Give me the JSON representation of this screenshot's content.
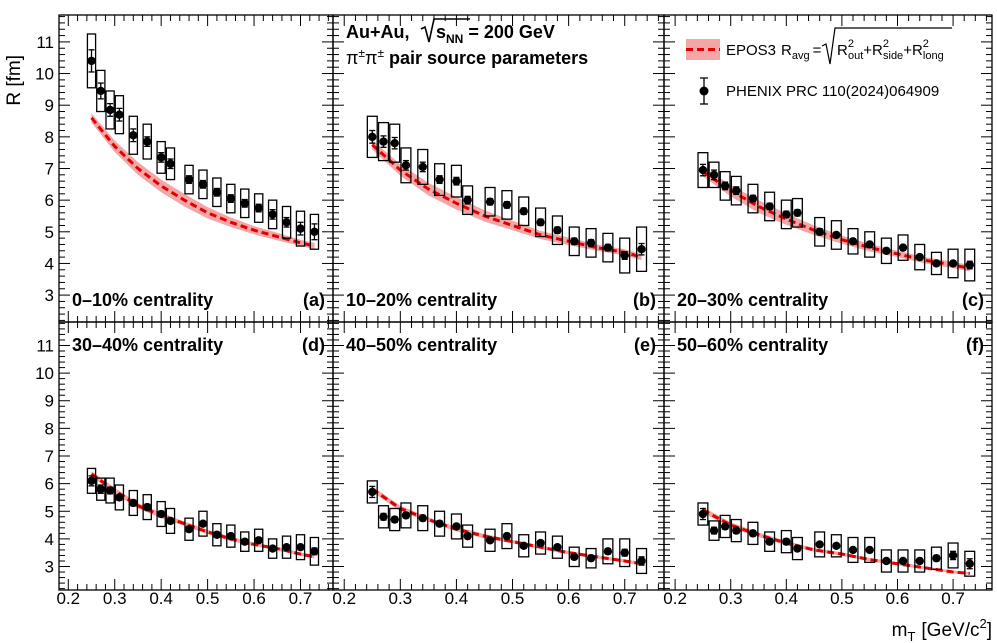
{
  "figure": {
    "y_axis_title": "R [fm]",
    "x_axis_title": "m",
    "x_axis_title_sub": "T",
    "x_axis_title_unit": "[GeV/c",
    "x_axis_title_unit_sup": "2",
    "x_axis_title_unit_end": "]"
  },
  "header": {
    "system": "Au+Au,",
    "sqrt_symbol": "√",
    "s": "s",
    "s_sub": "NN",
    "energy": "= 200 GeV",
    "pi1": "π",
    "pi1_sup": "±",
    "pi2": "π",
    "pi2_sup": "±",
    "line2_rest": "pair source parameters"
  },
  "legend": {
    "epos_label": "EPOS3",
    "r_symbol": "R",
    "r_sub": "avg",
    "equals": "=",
    "term1": "R",
    "term1_sup": "2",
    "term1_sub": "out",
    "plus1": "+",
    "term2": "R",
    "term2_sup": "2",
    "term2_sub": "side",
    "plus2": "+",
    "term3": "R",
    "term3_sup": "2",
    "term3_sub": "long",
    "phenix_label": "PHENIX PRC 110(2024)064909"
  },
  "colors": {
    "band": "#f4a6a6",
    "dash": "#e00000",
    "marker": "#000000"
  },
  "chart_data": {
    "type": "scatter",
    "xlim": [
      0.18,
      0.77
    ],
    "ylim": [
      2.15,
      11.85
    ],
    "x_ticks": [
      "0.2",
      "0.3",
      "0.4",
      "0.5",
      "0.6",
      "0.7"
    ],
    "y_ticks": [
      "3",
      "4",
      "5",
      "6",
      "7",
      "8",
      "9",
      "10",
      "11"
    ],
    "x": [
      0.25,
      0.27,
      0.29,
      0.31,
      0.34,
      0.37,
      0.4,
      0.42,
      0.46,
      0.49,
      0.52,
      0.55,
      0.58,
      0.61,
      0.64,
      0.67,
      0.7,
      0.73
    ],
    "panels": [
      {
        "label": "0–10% centrality",
        "letter": "(a)",
        "y": [
          10.4,
          9.45,
          8.85,
          8.7,
          8.05,
          7.85,
          7.35,
          7.15,
          6.65,
          6.5,
          6.25,
          6.05,
          5.9,
          5.75,
          5.55,
          5.3,
          5.1,
          5.0
        ],
        "stat_err": [
          0.35,
          0.25,
          0.2,
          0.2,
          0.2,
          0.15,
          0.15,
          0.15,
          0.12,
          0.12,
          0.12,
          0.12,
          0.12,
          0.12,
          0.15,
          0.15,
          0.2,
          0.25
        ],
        "sys_err": [
          0.85,
          0.65,
          0.6,
          0.6,
          0.6,
          0.55,
          0.5,
          0.5,
          0.45,
          0.45,
          0.45,
          0.45,
          0.45,
          0.45,
          0.45,
          0.5,
          0.55,
          0.55
        ],
        "epos_x": [
          0.25,
          0.3,
          0.35,
          0.4,
          0.45,
          0.5,
          0.55,
          0.6,
          0.65,
          0.7,
          0.73
        ],
        "epos_y": [
          8.6,
          7.7,
          7.0,
          6.45,
          6.0,
          5.6,
          5.3,
          5.05,
          4.85,
          4.65,
          4.55
        ],
        "epos_w": [
          0.15,
          0.18,
          0.2,
          0.2,
          0.2,
          0.18,
          0.15,
          0.13,
          0.12,
          0.1,
          0.1
        ]
      },
      {
        "label": "10–20% centrality",
        "letter": "(b)",
        "y": [
          8.0,
          7.85,
          7.8,
          7.1,
          7.05,
          6.65,
          6.6,
          6.0,
          5.95,
          5.85,
          5.65,
          5.3,
          5.05,
          4.7,
          4.65,
          4.5,
          4.25,
          4.45
        ],
        "stat_err": [
          0.2,
          0.18,
          0.18,
          0.15,
          0.15,
          0.12,
          0.12,
          0.12,
          0.1,
          0.1,
          0.1,
          0.1,
          0.1,
          0.1,
          0.1,
          0.1,
          0.12,
          0.18
        ],
        "sys_err": [
          0.65,
          0.6,
          0.6,
          0.55,
          0.55,
          0.5,
          0.5,
          0.45,
          0.45,
          0.45,
          0.45,
          0.45,
          0.45,
          0.45,
          0.45,
          0.45,
          0.55,
          0.7
        ],
        "epos_x": [
          0.25,
          0.3,
          0.35,
          0.4,
          0.45,
          0.5,
          0.55,
          0.6,
          0.65,
          0.7,
          0.73
        ],
        "epos_y": [
          7.75,
          6.95,
          6.35,
          5.9,
          5.5,
          5.2,
          4.9,
          4.7,
          4.5,
          4.35,
          4.2
        ],
        "epos_w": [
          0.15,
          0.18,
          0.2,
          0.2,
          0.18,
          0.15,
          0.13,
          0.12,
          0.1,
          0.1,
          0.1
        ]
      },
      {
        "label": "20–30% centrality",
        "letter": "(c)",
        "y": [
          6.95,
          6.8,
          6.45,
          6.3,
          6.05,
          5.8,
          5.55,
          5.6,
          5.0,
          4.9,
          4.7,
          4.6,
          4.4,
          4.5,
          4.2,
          4.0,
          4.0,
          3.95
        ],
        "stat_err": [
          0.18,
          0.15,
          0.12,
          0.12,
          0.1,
          0.1,
          0.1,
          0.1,
          0.1,
          0.08,
          0.08,
          0.08,
          0.08,
          0.08,
          0.08,
          0.08,
          0.08,
          0.12
        ],
        "sys_err": [
          0.55,
          0.4,
          0.45,
          0.45,
          0.45,
          0.45,
          0.45,
          0.45,
          0.45,
          0.45,
          0.4,
          0.4,
          0.4,
          0.4,
          0.4,
          0.35,
          0.45,
          0.5
        ],
        "epos_x": [
          0.25,
          0.3,
          0.35,
          0.4,
          0.45,
          0.5,
          0.55,
          0.6,
          0.65,
          0.7,
          0.73
        ],
        "epos_y": [
          6.9,
          6.3,
          5.8,
          5.4,
          5.05,
          4.75,
          4.5,
          4.3,
          4.1,
          3.95,
          3.85
        ],
        "epos_w": [
          0.15,
          0.18,
          0.2,
          0.18,
          0.15,
          0.13,
          0.12,
          0.1,
          0.1,
          0.1,
          0.1
        ]
      },
      {
        "label": "30–40% centrality",
        "letter": "(d)",
        "y": [
          6.1,
          5.8,
          5.75,
          5.5,
          5.3,
          5.15,
          4.9,
          4.65,
          4.35,
          4.55,
          4.15,
          4.1,
          3.9,
          3.95,
          3.65,
          3.7,
          3.7,
          3.55
        ],
        "stat_err": [
          0.18,
          0.15,
          0.12,
          0.1,
          0.1,
          0.1,
          0.1,
          0.08,
          0.08,
          0.08,
          0.08,
          0.08,
          0.08,
          0.08,
          0.08,
          0.08,
          0.08,
          0.12
        ],
        "sys_err": [
          0.45,
          0.4,
          0.45,
          0.45,
          0.45,
          0.45,
          0.45,
          0.45,
          0.4,
          0.45,
          0.4,
          0.4,
          0.35,
          0.4,
          0.35,
          0.4,
          0.45,
          0.5
        ],
        "epos_x": [
          0.25,
          0.3,
          0.35,
          0.4,
          0.45,
          0.5,
          0.55,
          0.6,
          0.65,
          0.7,
          0.73
        ],
        "epos_y": [
          6.35,
          5.75,
          5.2,
          4.85,
          4.55,
          4.25,
          4.0,
          3.8,
          3.65,
          3.45,
          3.35
        ],
        "epos_w": [
          0.1,
          0.1,
          0.1,
          0.1,
          0.08,
          0.08,
          0.08,
          0.06,
          0.06,
          0.06,
          0.06
        ]
      },
      {
        "label": "40–50% centrality",
        "letter": "(e)",
        "y": [
          5.7,
          4.8,
          4.7,
          4.85,
          4.75,
          4.55,
          4.45,
          4.1,
          3.95,
          4.1,
          3.75,
          3.85,
          3.7,
          3.35,
          3.3,
          3.55,
          3.5,
          3.2
        ],
        "stat_err": [
          0.2,
          0.12,
          0.1,
          0.1,
          0.1,
          0.1,
          0.1,
          0.08,
          0.08,
          0.08,
          0.08,
          0.08,
          0.08,
          0.08,
          0.08,
          0.1,
          0.12,
          0.15
        ],
        "sys_err": [
          0.4,
          0.4,
          0.4,
          0.45,
          0.45,
          0.45,
          0.45,
          0.4,
          0.4,
          0.45,
          0.4,
          0.4,
          0.4,
          0.35,
          0.35,
          0.45,
          0.5,
          0.45
        ],
        "epos_x": [
          0.25,
          0.3,
          0.35,
          0.4,
          0.45,
          0.5,
          0.55,
          0.6,
          0.65,
          0.7,
          0.73
        ],
        "epos_y": [
          5.8,
          5.1,
          4.7,
          4.35,
          4.1,
          3.9,
          3.7,
          3.5,
          3.35,
          3.2,
          3.1
        ],
        "epos_w": [
          0.1,
          0.1,
          0.08,
          0.08,
          0.08,
          0.06,
          0.06,
          0.06,
          0.06,
          0.06,
          0.06
        ]
      },
      {
        "label": "50–60% centrality",
        "letter": "(f)",
        "y": [
          4.9,
          4.3,
          4.45,
          4.3,
          4.2,
          3.9,
          3.9,
          3.65,
          3.8,
          3.75,
          3.6,
          3.6,
          3.2,
          3.2,
          3.2,
          3.3,
          3.4,
          3.1
        ],
        "stat_err": [
          0.2,
          0.12,
          0.1,
          0.1,
          0.1,
          0.1,
          0.1,
          0.08,
          0.08,
          0.08,
          0.08,
          0.08,
          0.08,
          0.08,
          0.08,
          0.1,
          0.15,
          0.18
        ],
        "sys_err": [
          0.4,
          0.35,
          0.4,
          0.4,
          0.4,
          0.35,
          0.4,
          0.4,
          0.45,
          0.4,
          0.45,
          0.45,
          0.4,
          0.4,
          0.4,
          0.4,
          0.45,
          0.45
        ],
        "epos_x": [
          0.25,
          0.3,
          0.35,
          0.4,
          0.45,
          0.5,
          0.55,
          0.6,
          0.65,
          0.7,
          0.73
        ],
        "epos_y": [
          5.05,
          4.5,
          4.15,
          3.85,
          3.6,
          3.45,
          3.25,
          3.1,
          2.95,
          2.8,
          2.75
        ],
        "epos_w": [
          0.1,
          0.1,
          0.08,
          0.08,
          0.06,
          0.06,
          0.06,
          0.06,
          0.05,
          0.05,
          0.05
        ]
      }
    ]
  }
}
